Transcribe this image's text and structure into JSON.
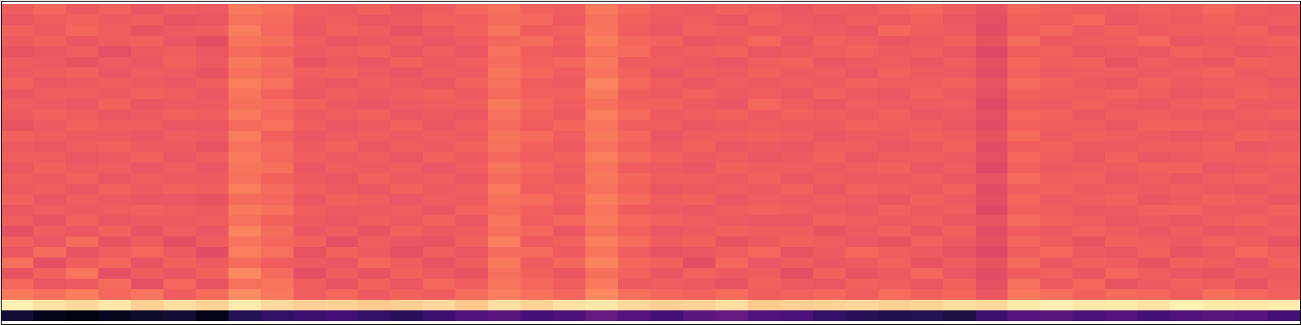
{
  "chart_data": {
    "type": "heatmap",
    "tick_labels": false,
    "color": "magma",
    "zlim": [
      0,
      100
    ],
    "cells": [
      [
        66,
        68,
        65,
        67,
        64,
        66,
        65,
        72,
        70,
        66,
        65,
        67,
        64,
        66,
        68,
        70,
        67,
        66,
        72,
        68,
        66,
        65,
        67,
        66,
        64,
        66,
        65,
        67,
        68,
        66,
        63,
        68,
        67,
        66,
        65,
        67,
        66,
        68,
        66,
        65
      ],
      [
        64,
        66,
        67,
        65,
        66,
        63,
        64,
        70,
        69,
        65,
        66,
        64,
        65,
        67,
        66,
        69,
        68,
        65,
        70,
        67,
        65,
        66,
        64,
        67,
        65,
        64,
        66,
        65,
        67,
        64,
        62,
        67,
        66,
        68,
        64,
        66,
        65,
        67,
        65,
        66
      ],
      [
        67,
        65,
        68,
        66,
        63,
        65,
        66,
        73,
        68,
        64,
        67,
        66,
        63,
        65,
        67,
        71,
        66,
        67,
        71,
        66,
        64,
        67,
        66,
        65,
        66,
        65,
        64,
        68,
        66,
        65,
        61,
        66,
        68,
        65,
        67,
        65,
        66,
        66,
        67,
        64
      ],
      [
        65,
        67,
        64,
        66,
        67,
        64,
        62,
        71,
        70,
        66,
        64,
        65,
        66,
        64,
        65,
        68,
        69,
        66,
        73,
        68,
        67,
        64,
        65,
        68,
        64,
        67,
        66,
        64,
        65,
        67,
        63,
        69,
        65,
        66,
        66,
        68,
        64,
        65,
        66,
        67
      ],
      [
        63,
        64,
        66,
        62,
        65,
        66,
        64,
        69,
        67,
        65,
        66,
        67,
        64,
        66,
        64,
        70,
        66,
        65,
        70,
        69,
        65,
        66,
        67,
        64,
        65,
        66,
        67,
        65,
        66,
        64,
        60,
        66,
        67,
        64,
        65,
        64,
        67,
        66,
        64,
        65
      ],
      [
        66,
        65,
        63,
        65,
        64,
        67,
        65,
        72,
        69,
        63,
        65,
        64,
        67,
        65,
        66,
        69,
        67,
        68,
        72,
        66,
        66,
        65,
        64,
        66,
        67,
        64,
        65,
        66,
        64,
        66,
        62,
        68,
        66,
        67,
        63,
        66,
        65,
        64,
        67,
        66
      ],
      [
        65,
        66,
        67,
        64,
        66,
        65,
        63,
        70,
        68,
        66,
        67,
        65,
        64,
        66,
        65,
        71,
        68,
        66,
        71,
        67,
        64,
        66,
        65,
        67,
        65,
        66,
        64,
        67,
        65,
        65,
        61,
        67,
        65,
        66,
        66,
        65,
        66,
        67,
        65,
        66
      ],
      [
        67,
        64,
        65,
        66,
        65,
        64,
        66,
        73,
        70,
        65,
        64,
        66,
        65,
        64,
        67,
        70,
        66,
        65,
        74,
        68,
        66,
        64,
        66,
        65,
        66,
        65,
        67,
        66,
        66,
        67,
        63,
        69,
        67,
        65,
        64,
        67,
        65,
        66,
        66,
        64
      ],
      [
        64,
        66,
        66,
        65,
        67,
        66,
        64,
        71,
        67,
        64,
        66,
        65,
        66,
        67,
        65,
        69,
        67,
        67,
        72,
        66,
        65,
        67,
        65,
        66,
        64,
        67,
        65,
        64,
        67,
        65,
        62,
        67,
        66,
        66,
        67,
        66,
        64,
        65,
        67,
        66
      ],
      [
        66,
        65,
        64,
        67,
        64,
        65,
        65,
        70,
        69,
        67,
        65,
        64,
        65,
        66,
        66,
        72,
        68,
        66,
        70,
        67,
        67,
        65,
        64,
        68,
        66,
        64,
        66,
        65,
        65,
        66,
        60,
        66,
        65,
        67,
        65,
        64,
        66,
        67,
        65,
        65
      ],
      [
        65,
        67,
        66,
        64,
        65,
        67,
        66,
        72,
        68,
        65,
        66,
        67,
        64,
        65,
        64,
        70,
        67,
        65,
        73,
        69,
        65,
        66,
        67,
        65,
        67,
        66,
        65,
        67,
        64,
        65,
        62,
        68,
        67,
        64,
        66,
        66,
        65,
        64,
        66,
        67
      ],
      [
        63,
        65,
        67,
        66,
        66,
        64,
        64,
        69,
        70,
        66,
        64,
        65,
        67,
        64,
        66,
        69,
        66,
        68,
        71,
        66,
        66,
        64,
        65,
        66,
        65,
        65,
        67,
        66,
        66,
        64,
        61,
        67,
        66,
        66,
        64,
        67,
        67,
        66,
        65,
        64
      ],
      [
        67,
        66,
        65,
        65,
        64,
        66,
        65,
        73,
        67,
        64,
        65,
        66,
        65,
        66,
        65,
        71,
        69,
        66,
        72,
        68,
        64,
        66,
        66,
        67,
        66,
        64,
        65,
        65,
        67,
        66,
        63,
        69,
        65,
        67,
        66,
        65,
        64,
        65,
        67,
        66
      ],
      [
        65,
        64,
        66,
        67,
        65,
        65,
        63,
        70,
        69,
        65,
        67,
        64,
        66,
        65,
        67,
        70,
        67,
        65,
        70,
        67,
        65,
        67,
        64,
        65,
        64,
        66,
        66,
        64,
        65,
        67,
        61,
        66,
        67,
        65,
        65,
        66,
        66,
        67,
        64,
        65
      ],
      [
        66,
        66,
        64,
        65,
        67,
        64,
        66,
        72,
        68,
        66,
        65,
        66,
        64,
        67,
        65,
        68,
        66,
        67,
        73,
        69,
        67,
        65,
        66,
        64,
        65,
        67,
        64,
        66,
        66,
        65,
        62,
        68,
        66,
        64,
        67,
        64,
        65,
        66,
        66,
        67
      ],
      [
        64,
        67,
        65,
        66,
        64,
        66,
        64,
        71,
        70,
        64,
        66,
        65,
        66,
        64,
        66,
        71,
        68,
        66,
        71,
        66,
        65,
        64,
        67,
        66,
        66,
        65,
        66,
        67,
        64,
        66,
        60,
        67,
        65,
        66,
        65,
        67,
        67,
        64,
        65,
        66
      ],
      [
        66,
        65,
        67,
        64,
        66,
        65,
        65,
        70,
        67,
        65,
        64,
        67,
        65,
        66,
        64,
        69,
        67,
        65,
        72,
        68,
        66,
        66,
        65,
        67,
        64,
        66,
        65,
        65,
        66,
        64,
        63,
        69,
        66,
        67,
        64,
        66,
        64,
        66,
        67,
        65
      ],
      [
        65,
        66,
        64,
        67,
        65,
        67,
        66,
        73,
        69,
        66,
        65,
        64,
        67,
        65,
        66,
        72,
        66,
        67,
        70,
        67,
        64,
        65,
        66,
        65,
        67,
        64,
        67,
        66,
        65,
        67,
        61,
        66,
        67,
        65,
        66,
        65,
        66,
        65,
        64,
        66
      ],
      [
        67,
        64,
        66,
        65,
        64,
        64,
        63,
        69,
        68,
        64,
        67,
        66,
        64,
        66,
        65,
        70,
        69,
        66,
        73,
        69,
        66,
        67,
        64,
        66,
        65,
        66,
        65,
        64,
        67,
        65,
        62,
        68,
        65,
        66,
        67,
        64,
        65,
        67,
        66,
        64
      ],
      [
        64,
        66,
        65,
        66,
        67,
        66,
        65,
        72,
        70,
        66,
        65,
        65,
        66,
        64,
        67,
        69,
        67,
        65,
        71,
        66,
        65,
        64,
        66,
        67,
        66,
        65,
        64,
        67,
        65,
        66,
        60,
        67,
        66,
        64,
        65,
        67,
        67,
        65,
        65,
        67
      ],
      [
        66,
        63,
        67,
        64,
        65,
        65,
        66,
        70,
        67,
        65,
        64,
        66,
        65,
        67,
        64,
        71,
        66,
        68,
        72,
        68,
        67,
        66,
        65,
        64,
        64,
        67,
        66,
        65,
        66,
        64,
        63,
        69,
        67,
        66,
        64,
        65,
        64,
        66,
        67,
        65
      ],
      [
        62,
        66,
        64,
        67,
        63,
        66,
        64,
        74,
        69,
        64,
        66,
        63,
        67,
        65,
        66,
        70,
        68,
        64,
        70,
        67,
        64,
        65,
        67,
        66,
        66,
        63,
        65,
        67,
        64,
        67,
        61,
        66,
        65,
        67,
        66,
        64,
        66,
        64,
        65,
        66
      ],
      [
        67,
        64,
        69,
        63,
        66,
        62,
        66,
        71,
        68,
        67,
        62,
        66,
        64,
        63,
        67,
        73,
        65,
        67,
        73,
        69,
        66,
        67,
        63,
        65,
        67,
        66,
        64,
        63,
        67,
        65,
        62,
        68,
        66,
        63,
        67,
        66,
        65,
        67,
        66,
        63
      ],
      [
        64,
        69,
        63,
        66,
        68,
        65,
        61,
        73,
        70,
        63,
        67,
        65,
        62,
        66,
        64,
        69,
        69,
        65,
        71,
        66,
        63,
        64,
        66,
        68,
        63,
        65,
        68,
        66,
        65,
        63,
        60,
        66,
        68,
        65,
        64,
        67,
        63,
        65,
        68,
        66
      ],
      [
        70,
        62,
        66,
        68,
        63,
        67,
        65,
        69,
        66,
        65,
        64,
        68,
        66,
        63,
        66,
        72,
        66,
        68,
        74,
        68,
        67,
        62,
        68,
        64,
        66,
        64,
        65,
        67,
        63,
        66,
        63,
        69,
        64,
        67,
        66,
        63,
        67,
        66,
        64,
        67
      ],
      [
        63,
        67,
        71,
        62,
        66,
        64,
        67,
        75,
        69,
        62,
        66,
        63,
        67,
        65,
        63,
        70,
        67,
        64,
        70,
        67,
        64,
        67,
        65,
        66,
        62,
        67,
        63,
        65,
        68,
        64,
        61,
        66,
        67,
        64,
        68,
        66,
        64,
        63,
        66,
        65
      ],
      [
        68,
        64,
        65,
        69,
        62,
        68,
        63,
        70,
        71,
        66,
        63,
        67,
        64,
        68,
        66,
        71,
        68,
        66,
        72,
        65,
        66,
        65,
        63,
        67,
        65,
        64,
        67,
        66,
        64,
        67,
        62,
        70,
        65,
        68,
        63,
        65,
        67,
        66,
        63,
        66
      ],
      [
        72,
        70,
        73,
        68,
        71,
        66,
        69,
        76,
        72,
        66,
        68,
        65,
        67,
        66,
        69,
        73,
        70,
        68,
        75,
        70,
        68,
        67,
        69,
        66,
        67,
        68,
        66,
        69,
        67,
        68,
        64,
        72,
        70,
        67,
        69,
        68,
        66,
        70,
        68,
        67
      ],
      [
        97,
        94,
        92,
        95,
        90,
        93,
        91,
        96,
        92,
        90,
        91,
        89,
        90,
        92,
        88,
        93,
        91,
        94,
        95,
        92,
        90,
        91,
        93,
        89,
        90,
        91,
        92,
        90,
        91,
        93,
        92,
        96,
        97,
        95,
        96,
        94,
        97,
        96,
        95,
        96
      ],
      [
        10,
        5,
        3,
        6,
        8,
        10,
        4,
        15,
        18,
        20,
        22,
        18,
        16,
        20,
        25,
        28,
        22,
        24,
        30,
        26,
        22,
        28,
        30,
        25,
        24,
        18,
        16,
        14,
        15,
        12,
        20,
        26,
        28,
        24,
        26,
        22,
        25,
        28,
        26,
        22
      ]
    ]
  }
}
